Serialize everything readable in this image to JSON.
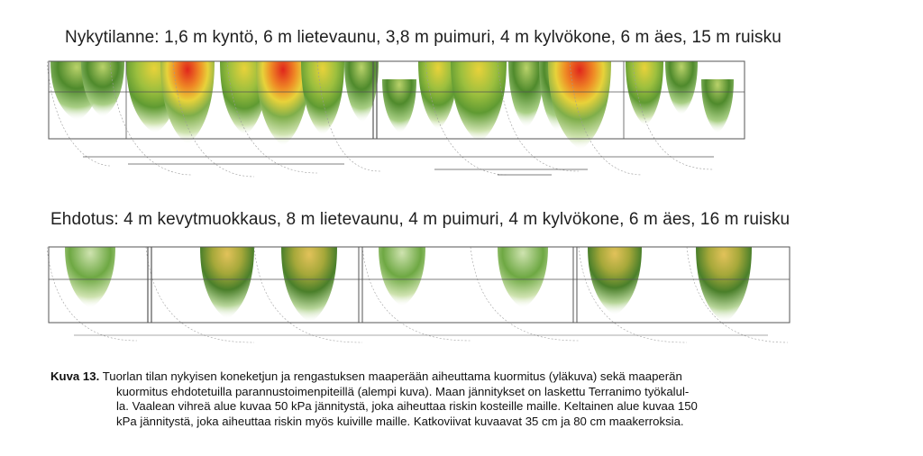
{
  "figure": {
    "top_title": "Nykytilanne: 1,6 m kyntö, 6 m lietevaunu, 3,8 m puimuri, 4 m kylvökone, 6 m äes, 15 m ruisku",
    "bottom_title": "Ehdotus: 4 m kevytmuokkaus, 8 m lietevaunu, 4 m puimuri, 4 m kylvökone, 6 m äes, 16 m ruisku"
  },
  "caption": {
    "label": "Kuva 13.",
    "lines": [
      "Tuorlan tilan nykyisen koneketjun ja rengastuksen maaperään aiheuttama kuormitus (yläkuva) sekä maaperän",
      "kuormitus ehdotetuilla parannustoimenpiteillä (alempi kuva). Maan jännitykset on laskettu Terranimo työkalul-",
      "la. Vaalean vihreä alue kuvaa 50 kPa jännitystä, joka aiheuttaa riskin kosteille maille. Keltainen alue kuvaa 150",
      "kPa jännitystä, joka aiheuttaa riskin myös kuiville maille. Katkoviivat kuvaavat 35 cm ja 80 cm maakerroksia."
    ]
  },
  "colors": {
    "light_green": "#cfe3b0",
    "green": "#7fae4a",
    "dark_green": "#4a7f2a",
    "yellow": "#e8d23a",
    "orange": "#ef8a25",
    "red": "#e0261c",
    "frame": "#555555"
  }
}
